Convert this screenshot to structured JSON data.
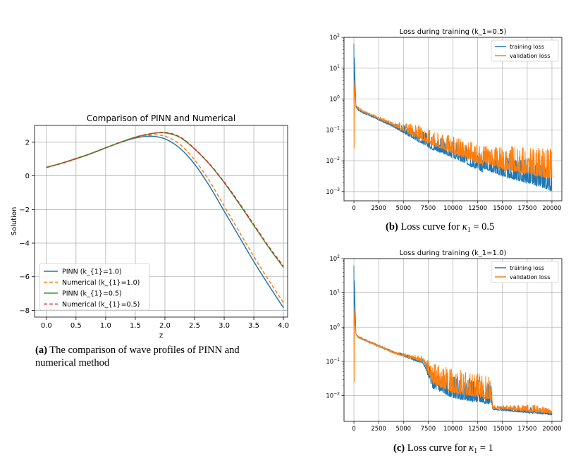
{
  "chart_data": [
    {
      "type": "line",
      "title": "Comparison of PINN and Numerical",
      "xlabel": "z",
      "ylabel": "Solution",
      "xlim": [
        -0.2,
        4.07
      ],
      "ylim": [
        -8.4,
        3.0
      ],
      "xticks": [
        0.0,
        0.5,
        1.0,
        1.5,
        2.0,
        2.5,
        3.0,
        3.5,
        4.0
      ],
      "xtick_labels": [
        "0.0",
        "0.5",
        "1.0",
        "1.5",
        "2.0",
        "2.5",
        "3.0",
        "3.5",
        "4.0"
      ],
      "yticks": [
        2,
        0,
        -2,
        -4,
        -6,
        -8
      ],
      "ytick_labels": [
        "2",
        "0",
        "−2",
        "−4",
        "−6",
        "−8"
      ],
      "grid": true,
      "legend_position": "lower-left",
      "x": [
        0.0,
        0.25,
        0.5,
        0.75,
        1.0,
        1.25,
        1.5,
        1.75,
        2.0,
        2.25,
        2.5,
        2.75,
        3.0,
        3.25,
        3.5,
        3.75,
        4.0
      ],
      "series": [
        {
          "name": "PINN (k_{1}=1.0)",
          "color": "#1f77b4",
          "dash": "solid",
          "values": [
            0.5,
            0.75,
            1.03,
            1.33,
            1.67,
            1.99,
            2.25,
            2.36,
            2.2,
            1.65,
            0.7,
            -0.6,
            -2.1,
            -3.6,
            -5.1,
            -6.5,
            -7.85
          ]
        },
        {
          "name": "Numerical (k_{1}=1.0)",
          "color": "#ff7f0e",
          "dash": "dashed",
          "values": [
            0.5,
            0.75,
            1.03,
            1.33,
            1.67,
            2.0,
            2.28,
            2.43,
            2.36,
            1.88,
            0.95,
            -0.3,
            -1.8,
            -3.3,
            -4.8,
            -6.2,
            -7.55
          ]
        },
        {
          "name": "PINN (k_{1}=0.5)",
          "color": "#2ca02c",
          "dash": "solid",
          "values": [
            0.5,
            0.74,
            1.02,
            1.32,
            1.66,
            2.0,
            2.3,
            2.5,
            2.56,
            2.3,
            1.6,
            0.7,
            -0.4,
            -1.65,
            -2.95,
            -4.25,
            -5.45
          ]
        },
        {
          "name": "Numerical  (k_{1}=0.5)",
          "color": "#d62728",
          "dash": "dashed",
          "values": [
            0.5,
            0.74,
            1.02,
            1.32,
            1.66,
            2.0,
            2.3,
            2.5,
            2.58,
            2.32,
            1.62,
            0.72,
            -0.37,
            -1.6,
            -2.9,
            -4.2,
            -5.38
          ]
        }
      ]
    },
    {
      "type": "line",
      "title": "Loss during training (k_1=0.5)",
      "yscale": "log",
      "xlim": [
        -1000,
        21000
      ],
      "ylim_log10": [
        -3.3,
        2.0
      ],
      "xticks": [
        0,
        2500,
        5000,
        7500,
        10000,
        12500,
        15000,
        17500,
        20000
      ],
      "xtick_labels": [
        "0",
        "2500",
        "5000",
        "7500",
        "10000",
        "12500",
        "15000",
        "17500",
        "20000"
      ],
      "yticks_log10": [
        2,
        1,
        0,
        -1,
        -2,
        -3
      ],
      "grid": true,
      "legend_position": "upper-right",
      "series": [
        {
          "name": "training loss",
          "color": "#1f77b4",
          "x": [
            0,
            200,
            400,
            900,
            2000,
            4000,
            6000,
            8000,
            10000,
            12000,
            13000,
            13100,
            15000,
            17500,
            20000
          ],
          "log10": [
            1.8,
            -0.25,
            -0.35,
            -0.45,
            -0.6,
            -0.9,
            -1.25,
            -1.6,
            -1.85,
            -2.15,
            -2.3,
            -2.2,
            -2.45,
            -2.65,
            -2.9
          ],
          "noise_log10": [
            0,
            0,
            0.05,
            0.05,
            0.05,
            0.1,
            0.35,
            0.45,
            0.5,
            0.55,
            0.55,
            0.5,
            0.6,
            0.7,
            0.75
          ]
        },
        {
          "name": "validation loss",
          "color": "#ff7f0e",
          "x": [
            0,
            200,
            400,
            900,
            2000,
            4000,
            6000,
            8000,
            10000,
            12000,
            13000,
            13100,
            15000,
            17500,
            20000
          ],
          "log10": [
            0.6,
            -0.2,
            -0.3,
            -0.4,
            -0.55,
            -0.85,
            -1.15,
            -1.45,
            -1.7,
            -1.95,
            -2.1,
            -2.0,
            -2.2,
            -2.35,
            -2.5
          ],
          "noise_log10": [
            0,
            0,
            0.05,
            0.05,
            0.05,
            0.1,
            0.35,
            0.45,
            0.5,
            0.55,
            0.55,
            0.5,
            0.7,
            0.8,
            0.9
          ]
        }
      ]
    },
    {
      "type": "line",
      "title": "Loss during training (k_1=1.0)",
      "yscale": "log",
      "xlim": [
        -1000,
        21000
      ],
      "ylim_log10": [
        -2.75,
        2.0
      ],
      "xticks": [
        0,
        2500,
        5000,
        7500,
        10000,
        12500,
        15000,
        17500,
        20000
      ],
      "xtick_labels": [
        "0",
        "2500",
        "5000",
        "7500",
        "10000",
        "12500",
        "15000",
        "17500",
        "20000"
      ],
      "yticks_log10": [
        2,
        1,
        0,
        -1,
        -2
      ],
      "grid": true,
      "legend_position": "upper-right",
      "series": [
        {
          "name": "training loss",
          "color": "#1f77b4",
          "x": [
            0,
            200,
            400,
            2000,
            4000,
            7000,
            8000,
            10000,
            12000,
            13900,
            14000,
            16000,
            18000,
            20000
          ],
          "log10": [
            1.8,
            -0.2,
            -0.3,
            -0.5,
            -0.75,
            -1.05,
            -1.75,
            -2.0,
            -2.1,
            -2.2,
            -2.4,
            -2.45,
            -2.5,
            -2.55
          ],
          "noise_log10": [
            0,
            0,
            0.05,
            0.05,
            0.05,
            0.15,
            0.5,
            0.6,
            0.6,
            0.6,
            0.08,
            0.1,
            0.15,
            0.1
          ]
        },
        {
          "name": "validation loss",
          "color": "#ff7f0e",
          "x": [
            0,
            200,
            400,
            2000,
            4000,
            7000,
            8000,
            10000,
            12000,
            13900,
            14000,
            16000,
            18000,
            20000
          ],
          "log10": [
            0.6,
            -0.2,
            -0.3,
            -0.5,
            -0.75,
            -1.0,
            -1.6,
            -1.85,
            -1.95,
            -2.05,
            -2.35,
            -2.4,
            -2.45,
            -2.5
          ],
          "noise_log10": [
            0,
            0,
            0.05,
            0.05,
            0.05,
            0.15,
            0.55,
            0.65,
            0.65,
            0.65,
            0.08,
            0.12,
            0.2,
            0.12
          ]
        }
      ]
    }
  ],
  "captions": {
    "a_label": "(a)",
    "a_text": "The comparison of wave profiles of PINN and numerical method",
    "b_label": "(b)",
    "b_text_pre": "Loss curve for",
    "b_kappa": "κ",
    "b_sub": "1",
    "b_text_post": "= 0.5",
    "c_label": "(c)",
    "c_text_pre": "Loss curve for",
    "c_kappa": "κ",
    "c_sub": "1",
    "c_text_post": "= 1"
  }
}
